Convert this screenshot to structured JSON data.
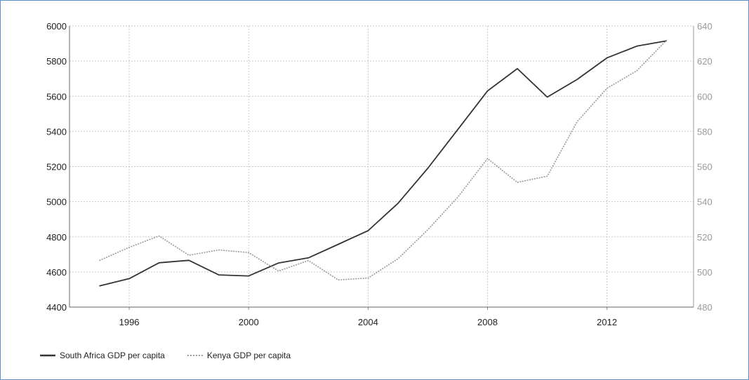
{
  "chart_data": {
    "type": "line",
    "x": [
      1995,
      1996,
      1997,
      1998,
      1999,
      2000,
      2001,
      2002,
      2003,
      2004,
      2005,
      2006,
      2007,
      2008,
      2009,
      2010,
      2011,
      2012,
      2013,
      2014
    ],
    "x_ticks": [
      "1996",
      "2000",
      "2004",
      "2008",
      "2012"
    ],
    "xlim": [
      1994.0,
      2014.9
    ],
    "y_left": {
      "ylim": [
        4400,
        6000
      ],
      "ticks": [
        "4400",
        "4600",
        "4800",
        "5000",
        "5200",
        "5400",
        "5600",
        "5800",
        "6000"
      ]
    },
    "y_right": {
      "ylim": [
        480,
        640
      ],
      "ticks": [
        "480",
        "500",
        "520",
        "540",
        "560",
        "580",
        "600",
        "620",
        "640"
      ]
    },
    "grid": true,
    "legend_placement": "bottom-left",
    "series": [
      {
        "name": "South Africa GDP per capita",
        "axis": "left",
        "style": "solid",
        "color": "#333333",
        "values": [
          4520,
          4562,
          4652,
          4666,
          4583,
          4577,
          4651,
          4680,
          4757,
          4835,
          4990,
          5190,
          5410,
          5630,
          5757,
          5595,
          5695,
          5818,
          5885,
          5915
        ]
      },
      {
        "name": "Kenya GDP per capita",
        "axis": "right",
        "style": "dotted",
        "color": "#999999",
        "values": [
          506.5,
          514,
          520.5,
          509.5,
          512.5,
          511,
          500.5,
          506.5,
          495.5,
          496.5,
          507.5,
          524,
          542.5,
          564.5,
          551,
          554.5,
          585.5,
          604.5,
          614.5,
          632
        ]
      }
    ]
  }
}
